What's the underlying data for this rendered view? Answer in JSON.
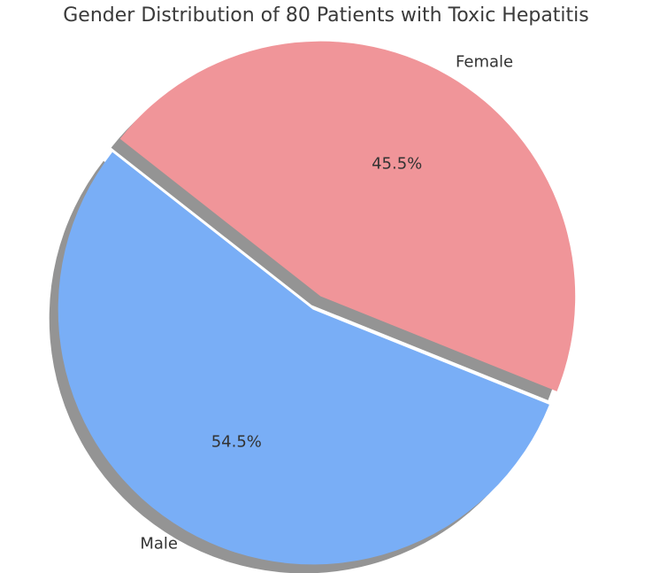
{
  "figure": {
    "background": "#ffffff",
    "title_color": "#3a3a3a",
    "text_color": "#333333"
  },
  "chart_data": {
    "type": "pie",
    "title": "Gender Distribution of 80 Patients with Toxic Hepatitis",
    "labels": [
      "Female",
      "Male"
    ],
    "values": [
      45.5,
      54.5
    ],
    "pct_labels": [
      "45.5%",
      "54.5%"
    ],
    "colors": [
      "#f09599",
      "#79aef6"
    ],
    "explode": [
      0.03,
      0.03
    ],
    "start_angle": -21.9,
    "counterclockwise": true,
    "shadow": true,
    "shadow_color": "#949494",
    "legend": "none"
  }
}
